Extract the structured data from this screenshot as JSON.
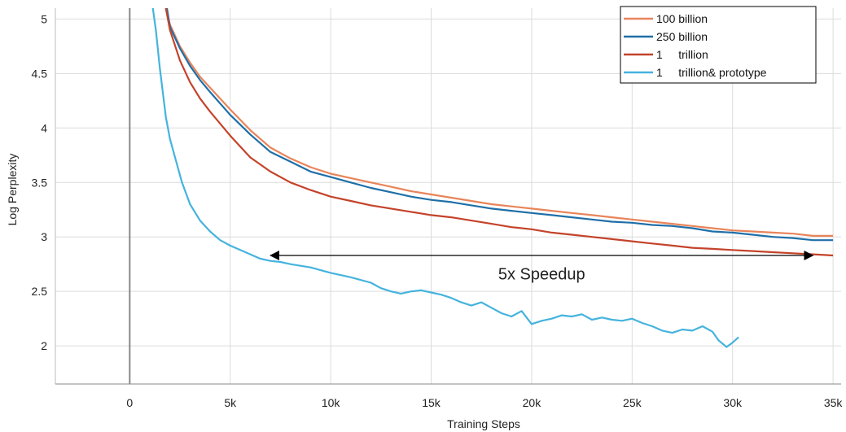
{
  "chart_data": {
    "type": "line",
    "xlabel": "Training Steps",
    "ylabel": "Log Perplexity",
    "xlim": [
      -3700,
      35400
    ],
    "ylim": [
      1.65,
      5.1
    ],
    "grid": true,
    "legend_position": "top-right",
    "x_ticks": [
      0,
      5000,
      10000,
      15000,
      20000,
      25000,
      30000,
      35000
    ],
    "x_tick_labels": [
      "0",
      "5k",
      "10k",
      "15k",
      "20k",
      "25k",
      "30k",
      "35k"
    ],
    "y_ticks": [
      2,
      2.5,
      3,
      3.5,
      4,
      4.5,
      5
    ],
    "y_tick_labels": [
      "2",
      "2.5",
      "3",
      "3.5",
      "4",
      "4.5",
      "5"
    ],
    "series": [
      {
        "name": "100 billion",
        "color": "#E8845A",
        "x": [
          1800,
          2000,
          2500,
          3000,
          3500,
          4000,
          5000,
          6000,
          7000,
          8000,
          9000,
          10000,
          11000,
          12000,
          13000,
          14000,
          15000,
          16000,
          17000,
          18000,
          19000,
          20000,
          21000,
          22000,
          23000,
          24000,
          25000,
          26000,
          27000,
          28000,
          29000,
          30000,
          31000,
          32000,
          33000,
          34000,
          35000
        ],
        "y": [
          5.1,
          4.95,
          4.75,
          4.6,
          4.47,
          4.37,
          4.17,
          3.98,
          3.82,
          3.72,
          3.64,
          3.58,
          3.54,
          3.5,
          3.46,
          3.42,
          3.39,
          3.36,
          3.33,
          3.3,
          3.28,
          3.26,
          3.24,
          3.22,
          3.2,
          3.18,
          3.16,
          3.14,
          3.12,
          3.1,
          3.08,
          3.06,
          3.05,
          3.04,
          3.03,
          3.01,
          3.01
        ]
      },
      {
        "name": "250 billion",
        "color": "#1F6FA8",
        "x": [
          1850,
          2000,
          2500,
          3000,
          3500,
          4000,
          5000,
          6000,
          7000,
          8000,
          9000,
          10000,
          11000,
          12000,
          13000,
          14000,
          15000,
          16000,
          17000,
          18000,
          19000,
          20000,
          21000,
          22000,
          23000,
          24000,
          25000,
          26000,
          27000,
          28000,
          29000,
          30000,
          31000,
          32000,
          33000,
          34000,
          35000
        ],
        "y": [
          5.1,
          4.93,
          4.73,
          4.57,
          4.44,
          4.33,
          4.12,
          3.94,
          3.78,
          3.69,
          3.6,
          3.55,
          3.5,
          3.45,
          3.41,
          3.37,
          3.34,
          3.32,
          3.29,
          3.26,
          3.24,
          3.22,
          3.2,
          3.18,
          3.16,
          3.14,
          3.13,
          3.11,
          3.1,
          3.08,
          3.05,
          3.04,
          3.02,
          3.0,
          2.99,
          2.97,
          2.97
        ]
      },
      {
        "name": "1     trillion",
        "color": "#C4432A",
        "x": [
          1800,
          2000,
          2500,
          3000,
          3500,
          4000,
          5000,
          6000,
          7000,
          8000,
          9000,
          10000,
          11000,
          12000,
          13000,
          14000,
          15000,
          16000,
          17000,
          18000,
          19000,
          20000,
          21000,
          22000,
          23000,
          24000,
          25000,
          26000,
          27000,
          28000,
          29000,
          30000,
          31000,
          32000,
          33000,
          34000,
          35000
        ],
        "y": [
          5.1,
          4.9,
          4.62,
          4.42,
          4.27,
          4.15,
          3.93,
          3.73,
          3.6,
          3.5,
          3.43,
          3.37,
          3.33,
          3.29,
          3.26,
          3.23,
          3.2,
          3.18,
          3.15,
          3.12,
          3.09,
          3.07,
          3.04,
          3.02,
          3.0,
          2.98,
          2.96,
          2.94,
          2.92,
          2.9,
          2.89,
          2.88,
          2.87,
          2.86,
          2.85,
          2.84,
          2.83
        ]
      },
      {
        "name": "1     trillion& prototype",
        "color": "#45B3DE",
        "x": [
          1150,
          1300,
          1500,
          1800,
          2000,
          2300,
          2600,
          3000,
          3500,
          4000,
          4500,
          5000,
          5500,
          6000,
          6500,
          7000,
          7500,
          8000,
          9000,
          10000,
          11000,
          12000,
          12500,
          13000,
          13500,
          14000,
          14500,
          15000,
          15500,
          16000,
          16500,
          17000,
          17500,
          18000,
          18500,
          19000,
          19500,
          20000,
          20500,
          21000,
          21500,
          22000,
          22500,
          23000,
          23500,
          24000,
          24500,
          25000,
          25500,
          26000,
          26500,
          27000,
          27500,
          28000,
          28500,
          29000,
          29300,
          29700,
          30000,
          30300
        ],
        "y": [
          5.1,
          4.9,
          4.55,
          4.1,
          3.9,
          3.7,
          3.5,
          3.3,
          3.15,
          3.05,
          2.97,
          2.92,
          2.88,
          2.84,
          2.8,
          2.78,
          2.77,
          2.75,
          2.72,
          2.67,
          2.63,
          2.58,
          2.53,
          2.5,
          2.48,
          2.5,
          2.51,
          2.49,
          2.47,
          2.44,
          2.4,
          2.37,
          2.4,
          2.35,
          2.3,
          2.27,
          2.32,
          2.2,
          2.23,
          2.25,
          2.28,
          2.27,
          2.29,
          2.24,
          2.26,
          2.24,
          2.23,
          2.25,
          2.21,
          2.18,
          2.14,
          2.12,
          2.15,
          2.14,
          2.18,
          2.13,
          2.05,
          1.99,
          2.03,
          2.08
        ]
      }
    ],
    "annotations": [
      {
        "text": "5x Speedup",
        "arrow_from": [
          7000,
          2.83
        ],
        "arrow_to": [
          34000,
          2.83
        ],
        "text_x": 20500,
        "text_y": 2.66
      }
    ],
    "vertical_line_x": 0
  }
}
